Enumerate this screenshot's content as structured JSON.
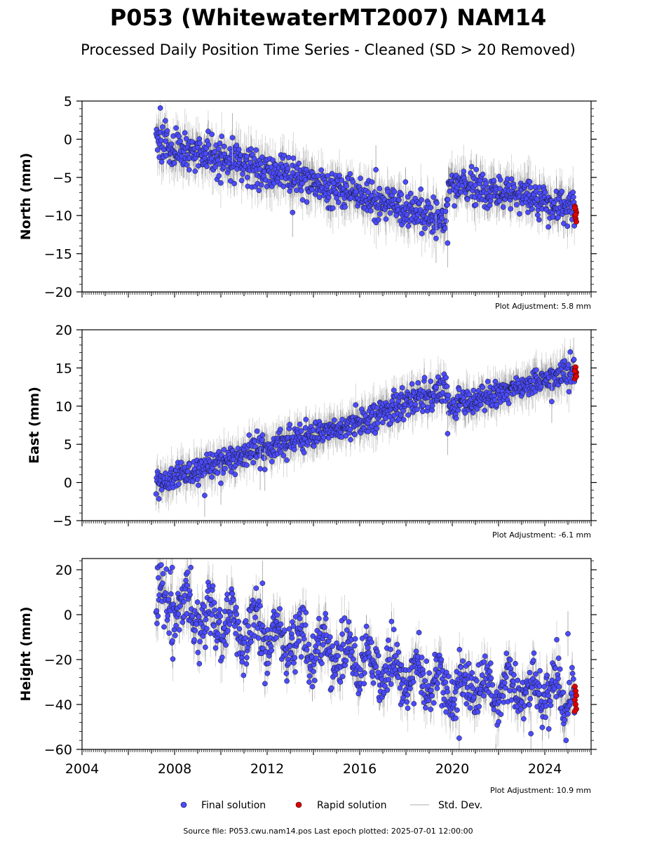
{
  "title": "P053 (WhitewaterMT2007) NAM14",
  "subtitle": "Processed Daily Position Time Series - Cleaned (SD > 20 Removed)",
  "source_note": "Source file: P053.cwu.nam14.pos  Last epoch plotted: 2025-07-01 12:00:00",
  "legend": {
    "final": "Final solution",
    "rapid": "Rapid solution",
    "sd": "Std. Dev."
  },
  "colors": {
    "final": "#4b4bff",
    "rapid": "#e00000",
    "sd": "#b0b0b0",
    "edge": "#111111"
  },
  "chart_data": [
    {
      "type": "scatter",
      "ylabel": "North (mm)",
      "xlim": [
        2004,
        2026
      ],
      "ylim": [
        -20,
        5
      ],
      "yticks": [
        5,
        0,
        -5,
        -10,
        -15,
        -20
      ],
      "adjustment": "Plot Adjustment: 5.8 mm",
      "trend": [
        [
          2007.2,
          -0.5
        ],
        [
          2012.0,
          -4.2
        ],
        [
          2016.0,
          -7.4
        ],
        [
          2019.7,
          -10.8
        ],
        [
          2019.9,
          -5.6
        ],
        [
          2025.3,
          -9.2
        ]
      ],
      "scatter_sd": 1.2,
      "band_sd": 1.6,
      "outliers": [
        [
          2010.5,
          0.2
        ],
        [
          2013.1,
          -9.6
        ],
        [
          2016.7,
          -4.0
        ],
        [
          2019.3,
          -13.0
        ],
        [
          2019.8,
          -13.6
        ]
      ],
      "rapid": [
        -8.8,
        -9.2,
        -9.6,
        -10.0,
        -10.4,
        -10.8,
        -9.0,
        -9.9
      ]
    },
    {
      "type": "scatter",
      "ylabel": "East (mm)",
      "xlim": [
        2004,
        2026
      ],
      "ylim": [
        -5,
        20
      ],
      "yticks": [
        20,
        15,
        10,
        5,
        0,
        -5
      ],
      "adjustment": "Plot Adjustment: -6.1 mm",
      "trend": [
        [
          2007.2,
          0.0
        ],
        [
          2012.0,
          4.6
        ],
        [
          2016.0,
          8.0
        ],
        [
          2019.7,
          12.3
        ],
        [
          2019.9,
          10.0
        ],
        [
          2025.3,
          14.6
        ]
      ],
      "scatter_sd": 0.9,
      "band_sd": 1.4,
      "outliers": [
        [
          2009.3,
          -1.7
        ],
        [
          2010.0,
          -0.1
        ],
        [
          2011.7,
          1.8
        ],
        [
          2011.9,
          1.7
        ],
        [
          2019.8,
          6.4
        ],
        [
          2024.3,
          10.6
        ]
      ],
      "rapid": [
        13.6,
        14.0,
        14.4,
        14.8,
        15.1,
        13.9,
        14.6
      ]
    },
    {
      "type": "scatter",
      "ylabel": "Height (mm)",
      "xlim": [
        2004,
        2026
      ],
      "ylim": [
        -60,
        25
      ],
      "yticks": [
        20,
        0,
        -20,
        -40,
        -60
      ],
      "xticks": [
        2004,
        2008,
        2012,
        2016,
        2020,
        2024
      ],
      "adjustment": "Plot Adjustment: 10.9 mm",
      "trend": [
        [
          2007.2,
          5.0
        ],
        [
          2012.0,
          -9.0
        ],
        [
          2016.0,
          -20.0
        ],
        [
          2020.0,
          -32.0
        ],
        [
          2025.3,
          -36.0
        ]
      ],
      "seasonal_amp": 7,
      "scatter_sd": 6.5,
      "band_sd": 5.0,
      "outliers": [
        [
          2007.9,
          21.0
        ],
        [
          2008.7,
          21.0
        ],
        [
          2011.8,
          14.0
        ],
        [
          2020.3,
          -55.0
        ],
        [
          2023.4,
          -53.0
        ],
        [
          2025.0,
          -8.5
        ]
      ],
      "rapid": [
        -32.0,
        -34.0,
        -36.0,
        -38.0,
        -40.0,
        -42.0,
        -43.0
      ]
    }
  ]
}
